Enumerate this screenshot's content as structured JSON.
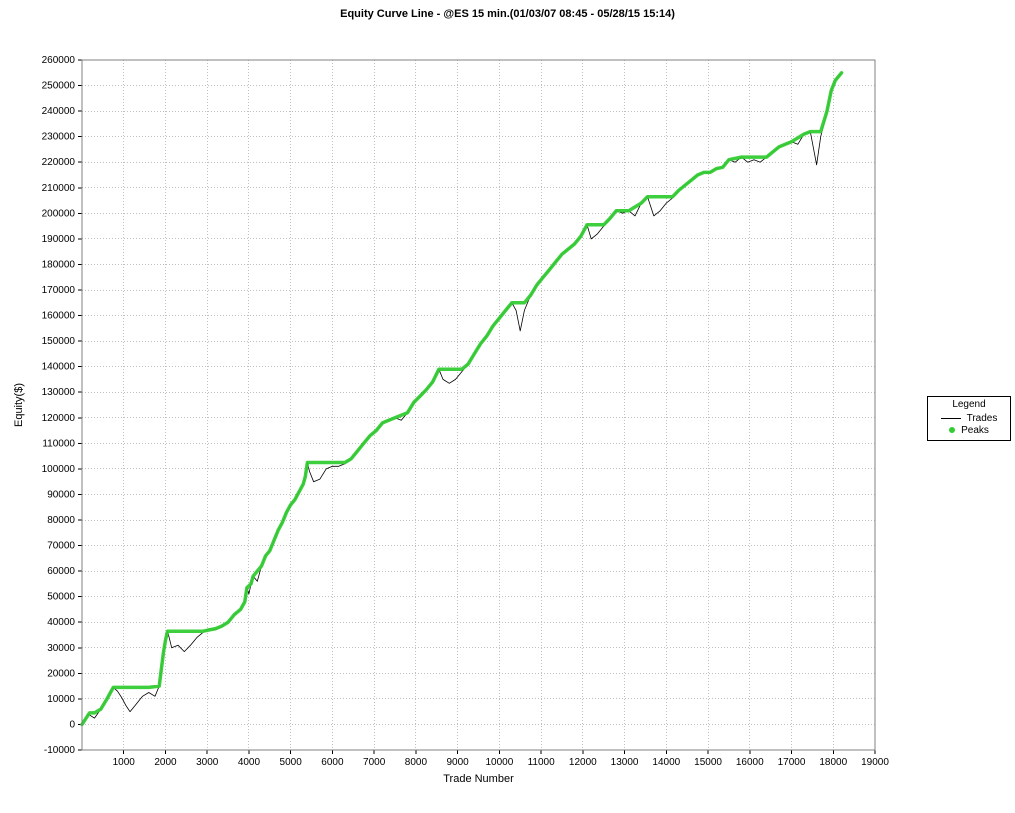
{
  "title": "Equity Curve Line - @ES 15 min.(01/03/07 08:45 - 05/28/15 15:14)",
  "title_fontsize": 11,
  "title_fontweight": "bold",
  "chart": {
    "type": "line",
    "background_color": "#ffffff",
    "plot_border_color": "#808080",
    "grid_color": "#808080",
    "grid_dash": "1 2",
    "xlabel": "Trade Number",
    "ylabel": "Equity($)",
    "label_fontsize": 11,
    "tick_fontsize": 10,
    "xlim": [
      0,
      19000
    ],
    "ylim": [
      -10000,
      260000
    ],
    "xtick_step": 1000,
    "ytick_step": 10000,
    "xticks": [
      1000,
      2000,
      3000,
      4000,
      5000,
      6000,
      7000,
      8000,
      9000,
      10000,
      11000,
      12000,
      13000,
      14000,
      15000,
      16000,
      17000,
      18000,
      19000
    ],
    "yticks": [
      -10000,
      0,
      10000,
      20000,
      30000,
      40000,
      50000,
      60000,
      70000,
      80000,
      90000,
      100000,
      110000,
      120000,
      130000,
      140000,
      150000,
      160000,
      170000,
      180000,
      190000,
      200000,
      210000,
      220000,
      230000,
      240000,
      250000,
      260000
    ],
    "series": {
      "trades": {
        "label": "Trades",
        "color": "#000000",
        "line_width": 0.8,
        "data": [
          [
            0,
            0
          ],
          [
            150,
            4000
          ],
          [
            300,
            2500
          ],
          [
            450,
            6000
          ],
          [
            600,
            10000
          ],
          [
            750,
            14500
          ],
          [
            850,
            13000
          ],
          [
            950,
            10500
          ],
          [
            1050,
            7500
          ],
          [
            1150,
            5000
          ],
          [
            1300,
            8000
          ],
          [
            1450,
            11000
          ],
          [
            1600,
            12500
          ],
          [
            1750,
            11000
          ],
          [
            1850,
            15000
          ],
          [
            1950,
            28000
          ],
          [
            2000,
            33000
          ],
          [
            2050,
            36500
          ],
          [
            2150,
            30000
          ],
          [
            2300,
            31000
          ],
          [
            2450,
            28500
          ],
          [
            2600,
            31000
          ],
          [
            2750,
            34000
          ],
          [
            2900,
            36000
          ],
          [
            3050,
            37500
          ],
          [
            3200,
            37000
          ],
          [
            3350,
            38500
          ],
          [
            3500,
            40000
          ],
          [
            3650,
            43000
          ],
          [
            3800,
            45000
          ],
          [
            3900,
            48000
          ],
          [
            3950,
            53500
          ],
          [
            4000,
            51000
          ],
          [
            4050,
            55000
          ],
          [
            4100,
            58000
          ],
          [
            4200,
            56000
          ],
          [
            4300,
            62000
          ],
          [
            4400,
            66000
          ],
          [
            4500,
            68000
          ],
          [
            4600,
            72000
          ],
          [
            4700,
            76000
          ],
          [
            4800,
            79000
          ],
          [
            4900,
            83000
          ],
          [
            5000,
            86000
          ],
          [
            5100,
            88000
          ],
          [
            5200,
            91000
          ],
          [
            5300,
            94000
          ],
          [
            5350,
            97000
          ],
          [
            5400,
            102500
          ],
          [
            5450,
            99000
          ],
          [
            5550,
            95000
          ],
          [
            5700,
            96000
          ],
          [
            5850,
            100000
          ],
          [
            6000,
            101000
          ],
          [
            6150,
            101000
          ],
          [
            6300,
            102000
          ],
          [
            6450,
            104000
          ],
          [
            6600,
            107000
          ],
          [
            6750,
            110000
          ],
          [
            6900,
            113000
          ],
          [
            7050,
            115000
          ],
          [
            7200,
            118000
          ],
          [
            7350,
            119000
          ],
          [
            7500,
            120000
          ],
          [
            7650,
            119000
          ],
          [
            7800,
            122000
          ],
          [
            7950,
            126000
          ],
          [
            8100,
            128500
          ],
          [
            8250,
            131000
          ],
          [
            8400,
            134000
          ],
          [
            8550,
            139000
          ],
          [
            8650,
            135000
          ],
          [
            8800,
            133500
          ],
          [
            8950,
            135000
          ],
          [
            9100,
            138000
          ],
          [
            9250,
            141000
          ],
          [
            9400,
            145000
          ],
          [
            9550,
            149000
          ],
          [
            9700,
            152000
          ],
          [
            9850,
            156000
          ],
          [
            10000,
            159000
          ],
          [
            10150,
            162000
          ],
          [
            10300,
            165000
          ],
          [
            10400,
            162000
          ],
          [
            10500,
            154000
          ],
          [
            10600,
            162000
          ],
          [
            10750,
            168000
          ],
          [
            10900,
            172000
          ],
          [
            11050,
            175000
          ],
          [
            11200,
            178000
          ],
          [
            11350,
            181000
          ],
          [
            11500,
            184000
          ],
          [
            11650,
            186000
          ],
          [
            11800,
            188000
          ],
          [
            11950,
            191000
          ],
          [
            12100,
            195500
          ],
          [
            12200,
            190000
          ],
          [
            12350,
            192000
          ],
          [
            12500,
            195000
          ],
          [
            12650,
            198000
          ],
          [
            12800,
            201000
          ],
          [
            12950,
            200000
          ],
          [
            13100,
            201000
          ],
          [
            13250,
            199000
          ],
          [
            13400,
            204000
          ],
          [
            13550,
            206500
          ],
          [
            13700,
            199000
          ],
          [
            13850,
            201000
          ],
          [
            14000,
            204000
          ],
          [
            14150,
            206000
          ],
          [
            14300,
            209000
          ],
          [
            14450,
            211000
          ],
          [
            14600,
            213000
          ],
          [
            14750,
            215000
          ],
          [
            14900,
            216000
          ],
          [
            15050,
            216000
          ],
          [
            15200,
            217500
          ],
          [
            15350,
            218000
          ],
          [
            15500,
            221000
          ],
          [
            15650,
            220000
          ],
          [
            15800,
            222000
          ],
          [
            15950,
            220000
          ],
          [
            16100,
            221000
          ],
          [
            16250,
            220000
          ],
          [
            16400,
            222000
          ],
          [
            16550,
            224000
          ],
          [
            16700,
            226000
          ],
          [
            16850,
            227000
          ],
          [
            17000,
            228000
          ],
          [
            17150,
            227000
          ],
          [
            17300,
            231000
          ],
          [
            17450,
            232000
          ],
          [
            17600,
            219000
          ],
          [
            17700,
            230000
          ],
          [
            17850,
            240000
          ],
          [
            17950,
            248000
          ],
          [
            18050,
            252000
          ],
          [
            18200,
            255000
          ]
        ]
      },
      "peaks": {
        "label": "Peaks",
        "color": "#33cc33",
        "line_width": 3.5,
        "data": [
          [
            0,
            0
          ],
          [
            180,
            4500
          ],
          [
            300,
            4500
          ],
          [
            450,
            6000
          ],
          [
            600,
            10000
          ],
          [
            750,
            14500
          ],
          [
            1000,
            14500
          ],
          [
            1300,
            14500
          ],
          [
            1600,
            14500
          ],
          [
            1850,
            15000
          ],
          [
            1950,
            28000
          ],
          [
            2000,
            33000
          ],
          [
            2050,
            36500
          ],
          [
            2300,
            36500
          ],
          [
            2600,
            36500
          ],
          [
            2900,
            36500
          ],
          [
            3200,
            37500
          ],
          [
            3350,
            38500
          ],
          [
            3500,
            40000
          ],
          [
            3650,
            43000
          ],
          [
            3800,
            45000
          ],
          [
            3900,
            48000
          ],
          [
            3950,
            53500
          ],
          [
            4050,
            55000
          ],
          [
            4100,
            58000
          ],
          [
            4300,
            62000
          ],
          [
            4400,
            66000
          ],
          [
            4500,
            68000
          ],
          [
            4600,
            72000
          ],
          [
            4700,
            76000
          ],
          [
            4800,
            79000
          ],
          [
            4900,
            83000
          ],
          [
            5000,
            86000
          ],
          [
            5100,
            88000
          ],
          [
            5200,
            91000
          ],
          [
            5300,
            94000
          ],
          [
            5350,
            97000
          ],
          [
            5400,
            102500
          ],
          [
            5700,
            102500
          ],
          [
            6000,
            102500
          ],
          [
            6300,
            102500
          ],
          [
            6450,
            104000
          ],
          [
            6600,
            107000
          ],
          [
            6750,
            110000
          ],
          [
            6900,
            113000
          ],
          [
            7050,
            115000
          ],
          [
            7200,
            118000
          ],
          [
            7350,
            119000
          ],
          [
            7500,
            120000
          ],
          [
            7800,
            122000
          ],
          [
            7950,
            126000
          ],
          [
            8100,
            128500
          ],
          [
            8250,
            131000
          ],
          [
            8400,
            134000
          ],
          [
            8550,
            139000
          ],
          [
            8800,
            139000
          ],
          [
            9100,
            139000
          ],
          [
            9250,
            141000
          ],
          [
            9400,
            145000
          ],
          [
            9550,
            149000
          ],
          [
            9700,
            152000
          ],
          [
            9850,
            156000
          ],
          [
            10000,
            159000
          ],
          [
            10150,
            162000
          ],
          [
            10300,
            165000
          ],
          [
            10600,
            165000
          ],
          [
            10750,
            168000
          ],
          [
            10900,
            172000
          ],
          [
            11050,
            175000
          ],
          [
            11200,
            178000
          ],
          [
            11350,
            181000
          ],
          [
            11500,
            184000
          ],
          [
            11650,
            186000
          ],
          [
            11800,
            188000
          ],
          [
            11950,
            191000
          ],
          [
            12100,
            195500
          ],
          [
            12350,
            195500
          ],
          [
            12500,
            195500
          ],
          [
            12650,
            198000
          ],
          [
            12800,
            201000
          ],
          [
            13100,
            201000
          ],
          [
            13400,
            204000
          ],
          [
            13550,
            206500
          ],
          [
            13850,
            206500
          ],
          [
            14150,
            206500
          ],
          [
            14300,
            209000
          ],
          [
            14450,
            211000
          ],
          [
            14600,
            213000
          ],
          [
            14750,
            215000
          ],
          [
            14900,
            216000
          ],
          [
            15050,
            216000
          ],
          [
            15200,
            217500
          ],
          [
            15350,
            218000
          ],
          [
            15500,
            221000
          ],
          [
            15800,
            222000
          ],
          [
            16100,
            222000
          ],
          [
            16400,
            222000
          ],
          [
            16550,
            224000
          ],
          [
            16700,
            226000
          ],
          [
            16850,
            227000
          ],
          [
            17000,
            228000
          ],
          [
            17300,
            231000
          ],
          [
            17450,
            232000
          ],
          [
            17700,
            232000
          ],
          [
            17850,
            240000
          ],
          [
            17950,
            248000
          ],
          [
            18050,
            252000
          ],
          [
            18200,
            255000
          ]
        ]
      }
    },
    "legend": {
      "title": "Legend",
      "border_color": "#000000",
      "background": "#ffffff",
      "fontsize": 10
    }
  }
}
